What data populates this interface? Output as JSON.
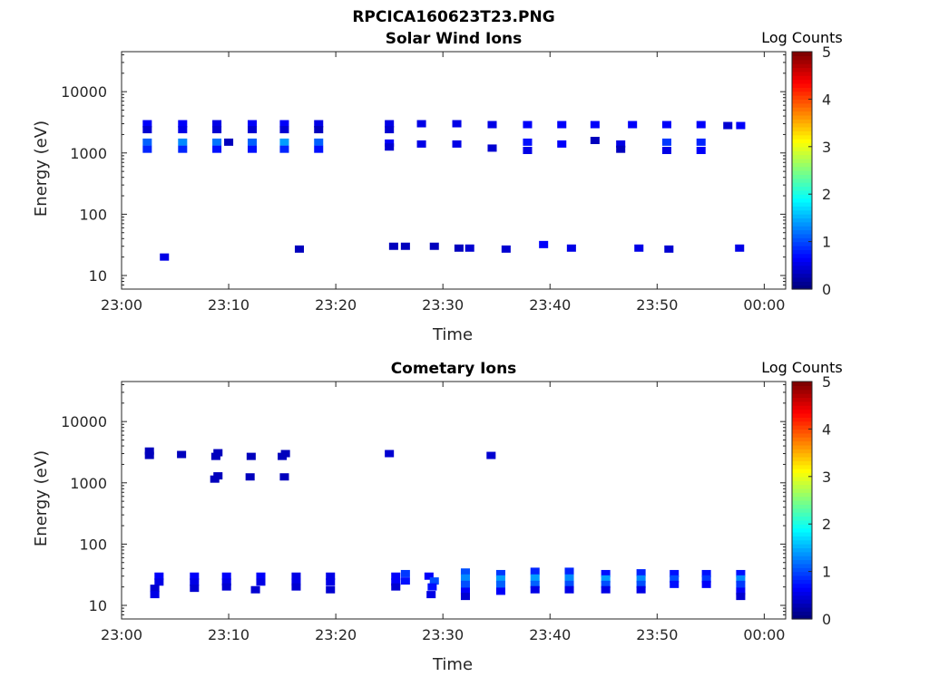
{
  "figure_title": "RPCICA160623T23.PNG",
  "chart_data": [
    {
      "type": "heatmap",
      "title": "Solar Wind Ions",
      "xlabel": "Time",
      "ylabel": "Energy (eV)",
      "yscale": "log",
      "ylim": [
        6,
        45000
      ],
      "xlim_minutes": [
        0,
        62
      ],
      "xticks": [
        "23:00",
        "23:10",
        "23:20",
        "23:30",
        "23:40",
        "23:50",
        "00:00"
      ],
      "yticks": [
        "10",
        "100",
        "1000",
        "10000"
      ],
      "colorbar": {
        "label": "Log Counts",
        "range": [
          0,
          5
        ],
        "ticks": [
          "0",
          "1",
          "2",
          "3",
          "4",
          "5"
        ]
      },
      "cells": [
        [
          2.4,
          3000,
          0.6
        ],
        [
          2.4,
          2400,
          0.4
        ],
        [
          2.4,
          1500,
          1.1
        ],
        [
          2.4,
          1150,
          0.8
        ],
        [
          4.0,
          20,
          0.5
        ],
        [
          5.7,
          3000,
          0.6
        ],
        [
          5.7,
          2400,
          0.5
        ],
        [
          5.7,
          1500,
          1.3
        ],
        [
          5.7,
          1150,
          0.8
        ],
        [
          8.9,
          3000,
          0.5
        ],
        [
          8.9,
          2400,
          0.4
        ],
        [
          8.9,
          1500,
          1.2
        ],
        [
          8.9,
          1150,
          0.7
        ],
        [
          10.0,
          1500,
          0.3
        ],
        [
          12.2,
          3000,
          0.6
        ],
        [
          12.2,
          2400,
          0.4
        ],
        [
          12.2,
          1500,
          1.1
        ],
        [
          12.2,
          1150,
          0.7
        ],
        [
          15.2,
          3000,
          0.6
        ],
        [
          15.2,
          2400,
          0.4
        ],
        [
          15.2,
          1500,
          1.4
        ],
        [
          15.2,
          1150,
          0.8
        ],
        [
          16.6,
          27,
          0.3
        ],
        [
          18.4,
          3000,
          0.5
        ],
        [
          18.4,
          2400,
          0.3
        ],
        [
          18.4,
          1500,
          1.1
        ],
        [
          18.4,
          1150,
          0.7
        ],
        [
          25.0,
          3000,
          0.5
        ],
        [
          25.0,
          2400,
          0.4
        ],
        [
          25.0,
          1450,
          0.6
        ],
        [
          25.0,
          1250,
          0.4
        ],
        [
          25.4,
          30,
          0.3
        ],
        [
          26.5,
          30,
          0.3
        ],
        [
          28.0,
          3000,
          0.5
        ],
        [
          28.0,
          1400,
          0.5
        ],
        [
          29.2,
          30,
          0.3
        ],
        [
          31.3,
          3000,
          0.5
        ],
        [
          31.3,
          1400,
          0.5
        ],
        [
          31.5,
          28,
          0.3
        ],
        [
          32.5,
          28,
          0.4
        ],
        [
          34.6,
          2900,
          0.5
        ],
        [
          34.6,
          1200,
          0.4
        ],
        [
          35.9,
          27,
          0.4
        ],
        [
          37.9,
          2900,
          0.6
        ],
        [
          37.9,
          1500,
          0.7
        ],
        [
          37.9,
          1100,
          0.5
        ],
        [
          39.4,
          32,
          0.6
        ],
        [
          41.1,
          2900,
          0.6
        ],
        [
          41.1,
          1400,
          0.6
        ],
        [
          42.0,
          28,
          0.5
        ],
        [
          44.2,
          2900,
          0.6
        ],
        [
          44.2,
          1600,
          0.3
        ],
        [
          46.6,
          1400,
          0.5
        ],
        [
          46.6,
          1150,
          0.3
        ],
        [
          47.7,
          2900,
          0.6
        ],
        [
          48.3,
          28,
          0.5
        ],
        [
          50.9,
          2900,
          0.6
        ],
        [
          50.9,
          1500,
          0.9
        ],
        [
          50.9,
          1100,
          0.5
        ],
        [
          51.1,
          27,
          0.4
        ],
        [
          54.1,
          2900,
          0.6
        ],
        [
          54.1,
          1500,
          0.8
        ],
        [
          54.1,
          1100,
          0.6
        ],
        [
          56.6,
          2800,
          0.4
        ],
        [
          57.8,
          2800,
          0.6
        ],
        [
          57.7,
          28,
          0.5
        ]
      ]
    },
    {
      "type": "heatmap",
      "title": "Cometary Ions",
      "xlabel": "Time",
      "ylabel": "Energy (eV)",
      "yscale": "log",
      "ylim": [
        6,
        45000
      ],
      "xlim_minutes": [
        0,
        62
      ],
      "xticks": [
        "23:00",
        "23:10",
        "23:20",
        "23:30",
        "23:40",
        "23:50",
        "00:00"
      ],
      "yticks": [
        "10",
        "100",
        "1000",
        "10000"
      ],
      "colorbar": {
        "label": "Log Counts",
        "range": [
          0,
          5
        ],
        "ticks": [
          "0",
          "1",
          "2",
          "3",
          "4",
          "5"
        ]
      },
      "cells": [
        [
          2.6,
          3300,
          0.3
        ],
        [
          2.6,
          2800,
          0.3
        ],
        [
          5.6,
          2900,
          0.3
        ],
        [
          8.8,
          2700,
          0.3
        ],
        [
          9.0,
          3100,
          0.3
        ],
        [
          8.7,
          1150,
          0.3
        ],
        [
          9.0,
          1300,
          0.3
        ],
        [
          12.1,
          2700,
          0.3
        ],
        [
          12.0,
          1250,
          0.3
        ],
        [
          15.0,
          2700,
          0.3
        ],
        [
          15.3,
          3000,
          0.3
        ],
        [
          15.2,
          1250,
          0.3
        ],
        [
          25.0,
          3000,
          0.4
        ],
        [
          34.5,
          2800,
          0.4
        ],
        [
          3.5,
          30,
          0.6
        ],
        [
          3.5,
          24,
          0.5
        ],
        [
          3.1,
          19,
          0.4
        ],
        [
          3.1,
          15,
          0.5
        ],
        [
          6.8,
          30,
          0.6
        ],
        [
          6.8,
          24,
          0.5
        ],
        [
          6.8,
          19,
          0.4
        ],
        [
          9.8,
          30,
          0.6
        ],
        [
          9.8,
          24,
          0.5
        ],
        [
          9.8,
          20,
          0.4
        ],
        [
          13.0,
          30,
          0.6
        ],
        [
          13.0,
          24,
          0.5
        ],
        [
          12.5,
          18,
          0.4
        ],
        [
          16.3,
          30,
          0.5
        ],
        [
          16.3,
          24,
          0.5
        ],
        [
          16.3,
          20,
          0.4
        ],
        [
          19.5,
          30,
          0.5
        ],
        [
          19.5,
          24,
          0.5
        ],
        [
          19.5,
          18,
          0.4
        ],
        [
          25.6,
          30,
          0.6
        ],
        [
          25.6,
          24,
          0.6
        ],
        [
          25.6,
          20,
          0.4
        ],
        [
          26.5,
          33,
          0.9
        ],
        [
          26.5,
          25,
          0.7
        ],
        [
          28.7,
          30,
          0.6
        ],
        [
          29.2,
          25,
          1.0
        ],
        [
          29.0,
          20,
          0.7
        ],
        [
          28.9,
          15,
          0.5
        ],
        [
          32.1,
          35,
          1.0
        ],
        [
          32.1,
          28,
          1.3
        ],
        [
          32.1,
          22,
          1.0
        ],
        [
          32.1,
          17,
          0.6
        ],
        [
          32.1,
          14,
          0.4
        ],
        [
          35.4,
          33,
          0.9
        ],
        [
          35.4,
          27,
          1.4
        ],
        [
          35.4,
          22,
          1.1
        ],
        [
          35.4,
          17,
          0.6
        ],
        [
          38.6,
          36,
          0.8
        ],
        [
          38.6,
          28,
          1.4
        ],
        [
          38.6,
          22,
          1.1
        ],
        [
          38.6,
          18,
          0.5
        ],
        [
          41.8,
          36,
          0.8
        ],
        [
          41.8,
          28,
          1.3
        ],
        [
          41.8,
          22,
          1.0
        ],
        [
          41.8,
          18,
          0.5
        ],
        [
          45.2,
          33,
          0.7
        ],
        [
          45.2,
          27,
          1.4
        ],
        [
          45.2,
          22,
          1.0
        ],
        [
          45.2,
          18,
          0.5
        ],
        [
          48.5,
          34,
          0.8
        ],
        [
          48.5,
          27,
          1.3
        ],
        [
          48.5,
          22,
          1.0
        ],
        [
          48.5,
          18,
          0.5
        ],
        [
          51.6,
          33,
          0.7
        ],
        [
          51.6,
          27,
          1.0
        ],
        [
          51.6,
          22,
          0.7
        ],
        [
          54.6,
          33,
          0.7
        ],
        [
          54.6,
          27,
          0.9
        ],
        [
          54.6,
          22,
          0.6
        ],
        [
          57.8,
          33,
          0.7
        ],
        [
          57.8,
          27,
          1.3
        ],
        [
          57.8,
          22,
          0.9
        ],
        [
          57.8,
          17,
          0.6
        ],
        [
          57.8,
          14,
          0.4
        ]
      ]
    }
  ]
}
